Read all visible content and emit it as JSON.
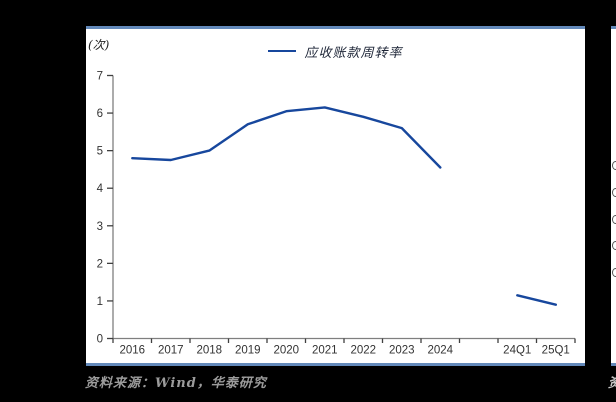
{
  "page": {
    "background": "#000000"
  },
  "panel": {
    "background": "#ffffff",
    "border_color": "#6389ba"
  },
  "chart_data": {
    "type": "line",
    "title": "",
    "unit_label": "(次)",
    "legend": [
      {
        "name": "应收账款周转率",
        "color": "#17479d"
      }
    ],
    "legend_position": "top-center",
    "categories": [
      "2016",
      "2017",
      "2018",
      "2019",
      "2020",
      "2021",
      "2022",
      "2023",
      "2024",
      "",
      "24Q1",
      "25Q1"
    ],
    "series": [
      {
        "name": "应收账款周转率",
        "color": "#17479d",
        "values": [
          4.8,
          4.75,
          5.0,
          5.7,
          6.05,
          6.15,
          5.9,
          5.6,
          4.55,
          null,
          1.15,
          0.9
        ]
      }
    ],
    "xlabel": "",
    "ylabel": "",
    "ylim": [
      0,
      7
    ],
    "yticks": [
      0,
      1,
      2,
      3,
      4,
      5,
      6,
      7
    ],
    "grid": false,
    "axis_color": "#7f7f7f",
    "tick_color": "#404040",
    "tick_label_color": "#333333"
  },
  "footer": {
    "source_text": "资料来源：Wind，华泰研究",
    "color": "#9b9b9b"
  },
  "right_sliver": {
    "partial_footer_text": "资",
    "mark_count": 5
  }
}
